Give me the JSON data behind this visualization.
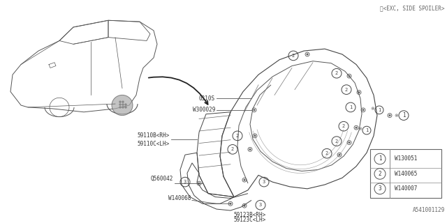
{
  "bg_color": "#ffffff",
  "title_note": "※<EXC, SIDE SPOILER>",
  "diagram_id": "A541001129",
  "legend": [
    {
      "num": "1",
      "code": "W130051"
    },
    {
      "num": "2",
      "code": "W140065"
    },
    {
      "num": "3",
      "code": "W140007"
    }
  ],
  "line_color": "#555555",
  "text_color": "#333333",
  "fastener_color": "#666666"
}
